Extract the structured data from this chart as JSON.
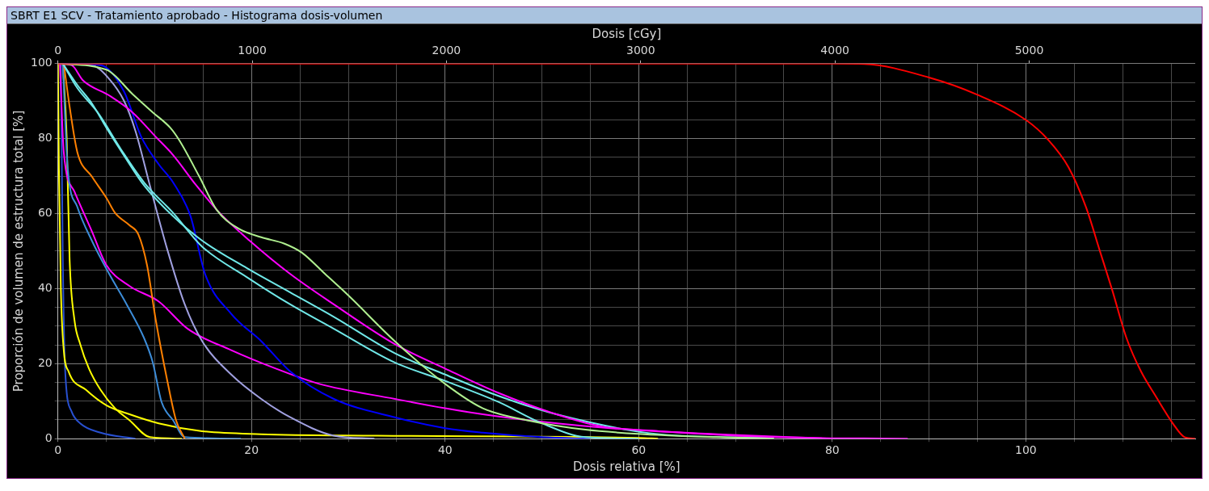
{
  "chart_data": {
    "type": "line",
    "title": "SBRT E1 SCV - Tratamiento aprobado - Histograma dosis-volumen",
    "xlabel": "Dosis relativa [%]",
    "x2label": "Dosis [cGy]",
    "ylabel": "Proporción de volumen de estructura total [%]",
    "xlim": [
      0,
      117.5
    ],
    "xticks": [
      0,
      {
        "value": 5,
        "label": null
      },
      {
        "value": 10,
        "label": null
      },
      {
        "value": 15,
        "label": null
      },
      20,
      {
        "value": 25,
        "label": null
      },
      {
        "value": 30,
        "label": null
      },
      {
        "value": 35,
        "label": null
      },
      40,
      {
        "value": 45,
        "label": null
      },
      {
        "value": 50,
        "label": null
      },
      {
        "value": 55,
        "label": null
      },
      60,
      {
        "value": 65,
        "label": null
      },
      {
        "value": 70,
        "label": null
      },
      {
        "value": 75,
        "label": null
      },
      80,
      {
        "value": 85,
        "label": null
      },
      {
        "value": 90,
        "label": null
      },
      {
        "value": 95,
        "label": null
      },
      100,
      {
        "value": 105,
        "label": null
      },
      {
        "value": 110,
        "label": null
      },
      {
        "value": 115,
        "label": null
      }
    ],
    "x2lim": [
      0,
      5855
    ],
    "x2ticks": [
      0,
      1000,
      2000,
      3000,
      4000,
      5000
    ],
    "ylim": [
      0,
      100
    ],
    "yticks": [
      0,
      {
        "value": 5,
        "label": null
      },
      {
        "value": 10,
        "label": null
      },
      {
        "value": 15,
        "label": null
      },
      20,
      {
        "value": 25,
        "label": null
      },
      {
        "value": 30,
        "label": null
      },
      {
        "value": 35,
        "label": null
      },
      40,
      {
        "value": 45,
        "label": null
      },
      {
        "value": 50,
        "label": null
      },
      {
        "value": 55,
        "label": null
      },
      60,
      {
        "value": 65,
        "label": null
      },
      {
        "value": 70,
        "label": null
      },
      {
        "value": 75,
        "label": null
      },
      80,
      {
        "value": 85,
        "label": null
      },
      {
        "value": 90,
        "label": null
      },
      {
        "value": 95,
        "label": null
      },
      100
    ],
    "grid": true,
    "marker": "none",
    "line_style": "solid",
    "series": [
      {
        "color": "#ff0000",
        "x": [
          0,
          40,
          80,
          83.3,
          90,
          95,
          100,
          102.3,
          104.4,
          106.2,
          107.7,
          108.9,
          110.4,
          111.9,
          113.4,
          115.2,
          116.4,
          117.5
        ],
        "values": [
          100,
          100,
          100,
          99.9,
          96.3,
          91.7,
          85,
          79.7,
          72.4,
          61.8,
          49.6,
          39.8,
          26.8,
          17.9,
          11.4,
          4,
          0.4,
          0
        ]
      },
      {
        "color": "#b0f090",
        "x": [
          0,
          5,
          7.7,
          9.8,
          11.6,
          12.5,
          14.6,
          16.4,
          18.6,
          21,
          23.4,
          25.2,
          27.6,
          30,
          34.8,
          40,
          43.9,
          48.5,
          54.5,
          60.6,
          68,
          74
        ],
        "values": [
          100,
          98.4,
          91.9,
          87,
          82.9,
          79.7,
          69.9,
          61,
          56.1,
          53.7,
          52,
          49.6,
          43.9,
          38.2,
          26,
          14.6,
          8.1,
          4.9,
          2.4,
          1.2,
          0.4,
          0
        ]
      },
      {
        "color": "#ff00ff",
        "x": [
          0,
          1.4,
          2.6,
          5.3,
          7.7,
          10.1,
          11.9,
          14.3,
          16.7,
          19.8,
          24,
          28.5,
          34.8,
          40,
          45.5,
          51.5,
          56.1,
          62.1,
          74.2,
          87.8
        ],
        "values": [
          100,
          99.6,
          95.5,
          91.5,
          87,
          80.5,
          75.6,
          67.5,
          60.2,
          52.8,
          43.9,
          35.8,
          25.2,
          18.7,
          12.2,
          6.5,
          3.3,
          2,
          0.4,
          0
        ]
      },
      {
        "color": "#70e8e8",
        "x": [
          0.5,
          2,
          3.5,
          5,
          6.8,
          8.9,
          11.9,
          14.9,
          19.5,
          24,
          28.5,
          34.8,
          40,
          45.5,
          51.5,
          62.1,
          73.9
        ],
        "values": [
          100,
          94.3,
          89.4,
          82.9,
          75.6,
          67.5,
          59.3,
          52.8,
          45.5,
          39,
          32.5,
          22.8,
          17.1,
          11.4,
          6.5,
          1.2,
          0.2
        ]
      },
      {
        "color": "#70e8e8",
        "x": [
          0.5,
          2,
          4.1,
          6.5,
          8.9,
          11.9,
          14.9,
          19.5,
          24,
          28.5,
          34.8,
          40,
          45.5,
          50,
          54.5,
          60
        ],
        "values": [
          100,
          93.5,
          87,
          77.2,
          68.3,
          60.2,
          51.2,
          43.1,
          35.8,
          29.3,
          20.3,
          15.4,
          9.8,
          4.1,
          0.4,
          0
        ]
      },
      {
        "color": "#0000ff",
        "x": [
          0.5,
          4.4,
          6.8,
          8.6,
          10.4,
          11.9,
          13.7,
          15.2,
          17.9,
          21,
          24,
          28.5,
          34.8,
          40,
          43.9,
          50,
          55
        ],
        "values": [
          100,
          99.6,
          92.7,
          80.5,
          73.2,
          68.3,
          59.3,
          43.9,
          33.3,
          26,
          17.9,
          10.6,
          5.7,
          2.8,
          1.6,
          0.4,
          0
        ]
      },
      {
        "color": "#a0a0e0",
        "x": [
          0.5,
          3.5,
          5.3,
          6.8,
          8,
          9.5,
          11.3,
          13.1,
          14.9,
          17.9,
          21,
          24,
          28.5,
          32.7
        ],
        "values": [
          100,
          99.6,
          95.9,
          90.2,
          82.1,
          67.5,
          50.4,
          35.8,
          26,
          17.1,
          10.6,
          5.7,
          0.8,
          0
        ]
      },
      {
        "color": "#ff8000",
        "x": [
          0.6,
          1.2,
          2,
          3.5,
          5,
          5.9,
          7.4,
          8.3,
          9.2,
          10.1,
          11.3,
          12.2,
          13.1
        ],
        "values": [
          100,
          88.6,
          76.4,
          69.9,
          64.2,
          60.2,
          56.9,
          54.5,
          46.3,
          31.7,
          15.4,
          4.9,
          0
        ]
      },
      {
        "color": "#3c8cd8",
        "x": [
          0.5,
          1,
          2,
          3.5,
          5.3,
          7.1,
          8.9,
          9.8,
          10.7,
          11.9,
          13.1,
          18.9
        ],
        "values": [
          100,
          72.4,
          61.8,
          52.8,
          43.9,
          35.8,
          26.8,
          20.3,
          9.8,
          4.9,
          0.4,
          0
        ]
      },
      {
        "color": "#ff00ff",
        "x": [
          0.2,
          0.6,
          1.7,
          3.5,
          5,
          7.4,
          10.4,
          13.4,
          17.9,
          22.5,
          27,
          34.8,
          40,
          43.9,
          50,
          59,
          68.2,
          80
        ],
        "values": [
          100,
          76.4,
          65.9,
          55.3,
          46.3,
          40.7,
          36.6,
          29.3,
          23.6,
          18.7,
          14.6,
          10.6,
          8.1,
          6.5,
          4.5,
          2.4,
          1.2,
          0
        ]
      },
      {
        "color": "#ffff00",
        "x": [
          0,
          0.1,
          0.3,
          0.6,
          1.1,
          2.9,
          5,
          7.4,
          10.4,
          14.9,
          21,
          33,
          60,
          62
        ],
        "values": [
          100,
          72,
          39.8,
          23.6,
          17.9,
          13,
          8.9,
          6.5,
          4.1,
          2,
          1.2,
          0.8,
          0.2,
          0
        ]
      },
      {
        "color": "#ffff00",
        "x": [
          0.5,
          0.9,
          1.2,
          1.7,
          2.3,
          3.2,
          4.4,
          5.9,
          7.4,
          9.5,
          12.8
        ],
        "values": [
          100,
          80.5,
          48,
          31.7,
          25.2,
          18.7,
          13,
          8.1,
          4.9,
          0.4,
          0
        ]
      },
      {
        "color": "#2850d0",
        "x": [
          0.3,
          0.5,
          0.75,
          1.4,
          2.3,
          4.4,
          8
        ],
        "values": [
          100,
          48,
          17.9,
          7.3,
          4.1,
          1.6,
          0
        ]
      }
    ]
  }
}
